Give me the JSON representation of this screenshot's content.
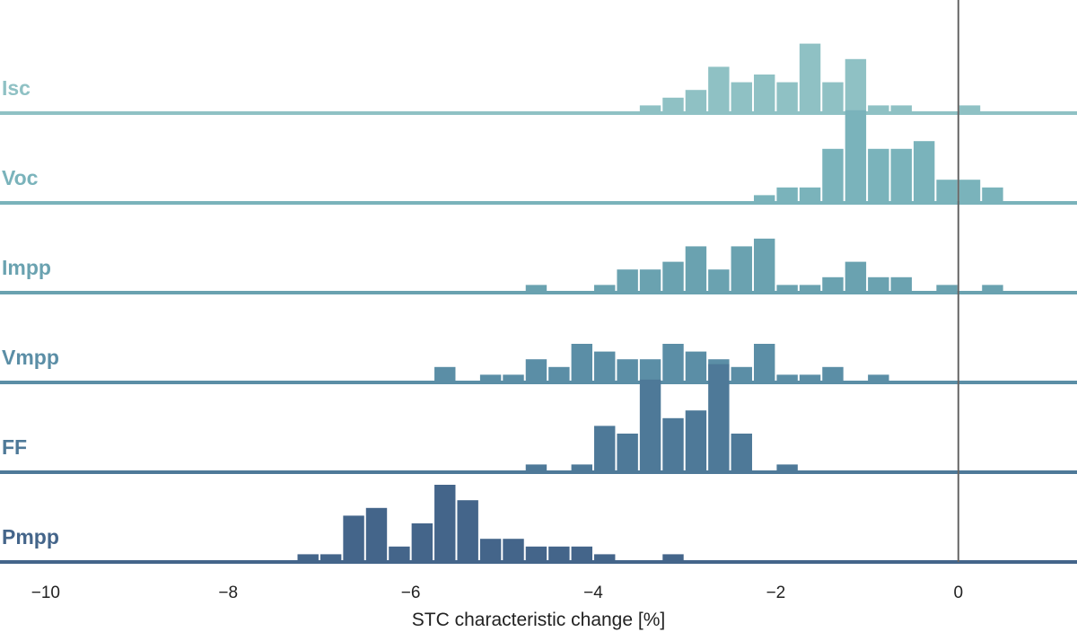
{
  "chart_data": {
    "type": "bar",
    "layout": "ridgeline-histogram",
    "xlabel": "STC characteristic change [%]",
    "xlim": [
      -10.5,
      1.3
    ],
    "xticks": [
      -10,
      -8,
      -6,
      -4,
      -2,
      0
    ],
    "xtick_labels": [
      "−10",
      "−8",
      "−6",
      "−4",
      "−2",
      "0"
    ],
    "bin_width": 0.25,
    "reference_line_x": 0,
    "colors": {
      "Isc": "#8fc1c4",
      "Voc": "#7ab3bb",
      "Impp": "#6aa2b0",
      "Vmpp": "#5b8ea6",
      "FF": "#4e7998",
      "Pmpp": "#44658a",
      "reference_line": "#666666",
      "axis_text": "#222222"
    },
    "series": [
      {
        "name": "Isc",
        "bin_centers": [
          -3.375,
          -3.125,
          -2.875,
          -2.625,
          -2.375,
          -2.125,
          -1.875,
          -1.625,
          -1.375,
          -1.125,
          -0.875,
          -0.625,
          0.125
        ],
        "counts": [
          1,
          2,
          3,
          6,
          4,
          5,
          4,
          9,
          4,
          7,
          1,
          1,
          1
        ]
      },
      {
        "name": "Voc",
        "bin_centers": [
          -2.125,
          -1.875,
          -1.625,
          -1.375,
          -1.125,
          -0.875,
          -0.625,
          -0.375,
          -0.125,
          0.125,
          0.375
        ],
        "counts": [
          1,
          2,
          2,
          7,
          12,
          7,
          7,
          8,
          3,
          3,
          2
        ]
      },
      {
        "name": "Impp",
        "bin_centers": [
          -4.625,
          -3.875,
          -3.625,
          -3.375,
          -3.125,
          -2.875,
          -2.625,
          -2.375,
          -2.125,
          -1.875,
          -1.625,
          -1.375,
          -1.125,
          -0.875,
          -0.625,
          -0.125,
          0.375
        ],
        "counts": [
          1,
          1,
          3,
          3,
          4,
          6,
          3,
          6,
          7,
          1,
          1,
          2,
          4,
          2,
          2,
          1,
          1
        ]
      },
      {
        "name": "Vmpp",
        "bin_centers": [
          -5.625,
          -5.125,
          -4.875,
          -4.625,
          -4.375,
          -4.125,
          -3.875,
          -3.625,
          -3.375,
          -3.125,
          -2.875,
          -2.625,
          -2.375,
          -2.125,
          -1.875,
          -1.625,
          -1.375,
          -0.875
        ],
        "counts": [
          2,
          1,
          1,
          3,
          2,
          5,
          4,
          3,
          3,
          5,
          4,
          3,
          2,
          5,
          1,
          1,
          2,
          1
        ]
      },
      {
        "name": "FF",
        "bin_centers": [
          -4.625,
          -4.125,
          -3.875,
          -3.625,
          -3.375,
          -3.125,
          -2.875,
          -2.625,
          -2.375,
          -1.875
        ],
        "counts": [
          1,
          1,
          6,
          5,
          12,
          7,
          8,
          14,
          5,
          1
        ]
      },
      {
        "name": "Pmpp",
        "bin_centers": [
          -7.125,
          -6.875,
          -6.625,
          -6.375,
          -6.125,
          -5.875,
          -5.625,
          -5.375,
          -5.125,
          -4.875,
          -4.625,
          -4.375,
          -4.125,
          -3.875,
          -3.125
        ],
        "counts": [
          1,
          1,
          6,
          7,
          2,
          5,
          10,
          8,
          3,
          3,
          2,
          2,
          2,
          1,
          1
        ]
      }
    ]
  }
}
